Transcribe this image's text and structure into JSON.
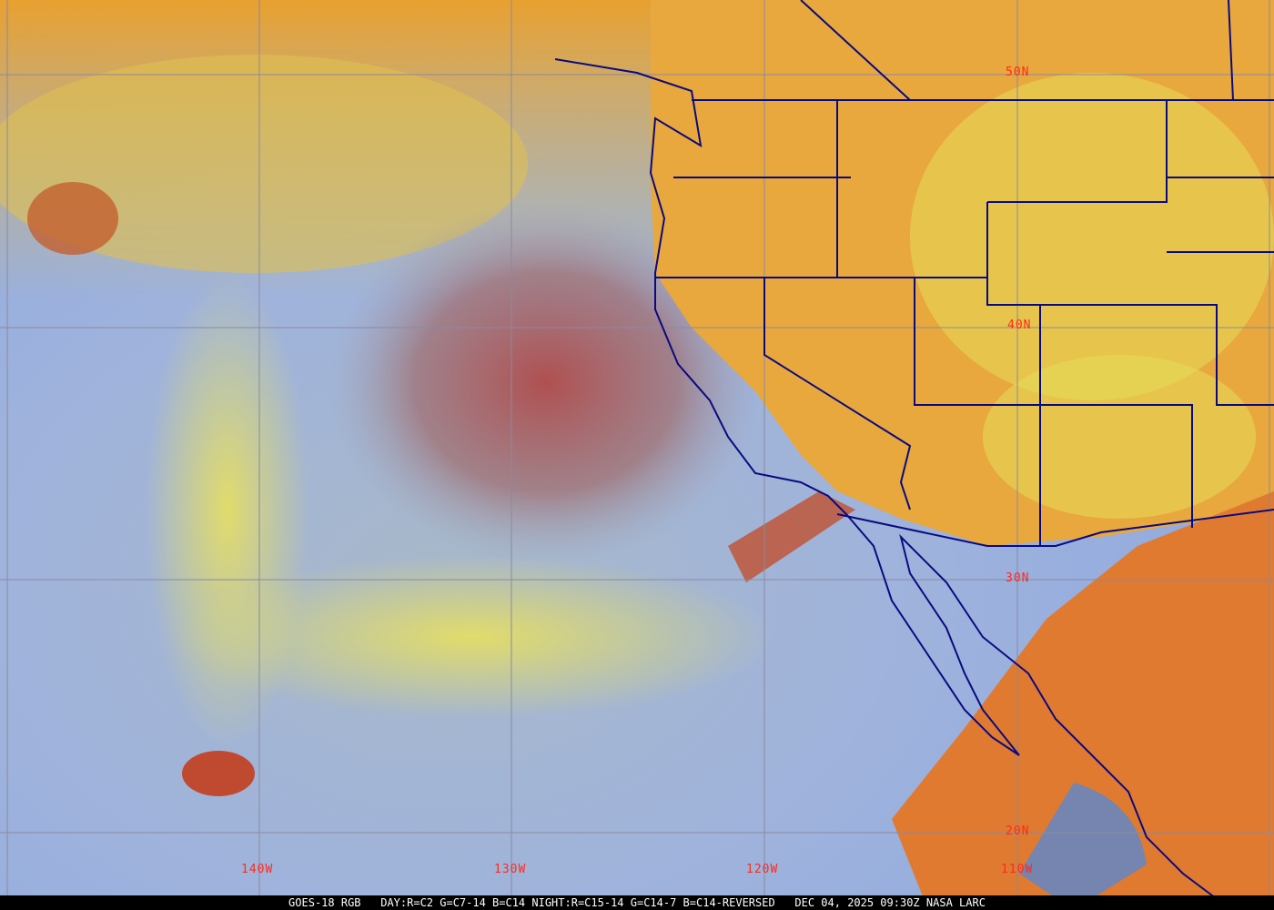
{
  "caption": {
    "satellite": "GOES-18 RGB",
    "recipe": "DAY:R=C2 G=C7-14 B=C14 NIGHT:R=C15-14 G=C14-7 B=C14-REVERSED",
    "timestamp": "DEC 04, 2025 09:30Z",
    "credit": "NASA LARC"
  },
  "latitude_labels": [
    "50N",
    "40N",
    "30N",
    "20N"
  ],
  "longitude_labels": [
    "140W",
    "130W",
    "120W",
    "110W"
  ],
  "colors": {
    "grid": "#8a8aa0",
    "boundaries": "#0a0a80",
    "labels": "#ff2a1a",
    "land_clouds": "#e8a030",
    "ocean_clouds": "#9ab0d8"
  }
}
